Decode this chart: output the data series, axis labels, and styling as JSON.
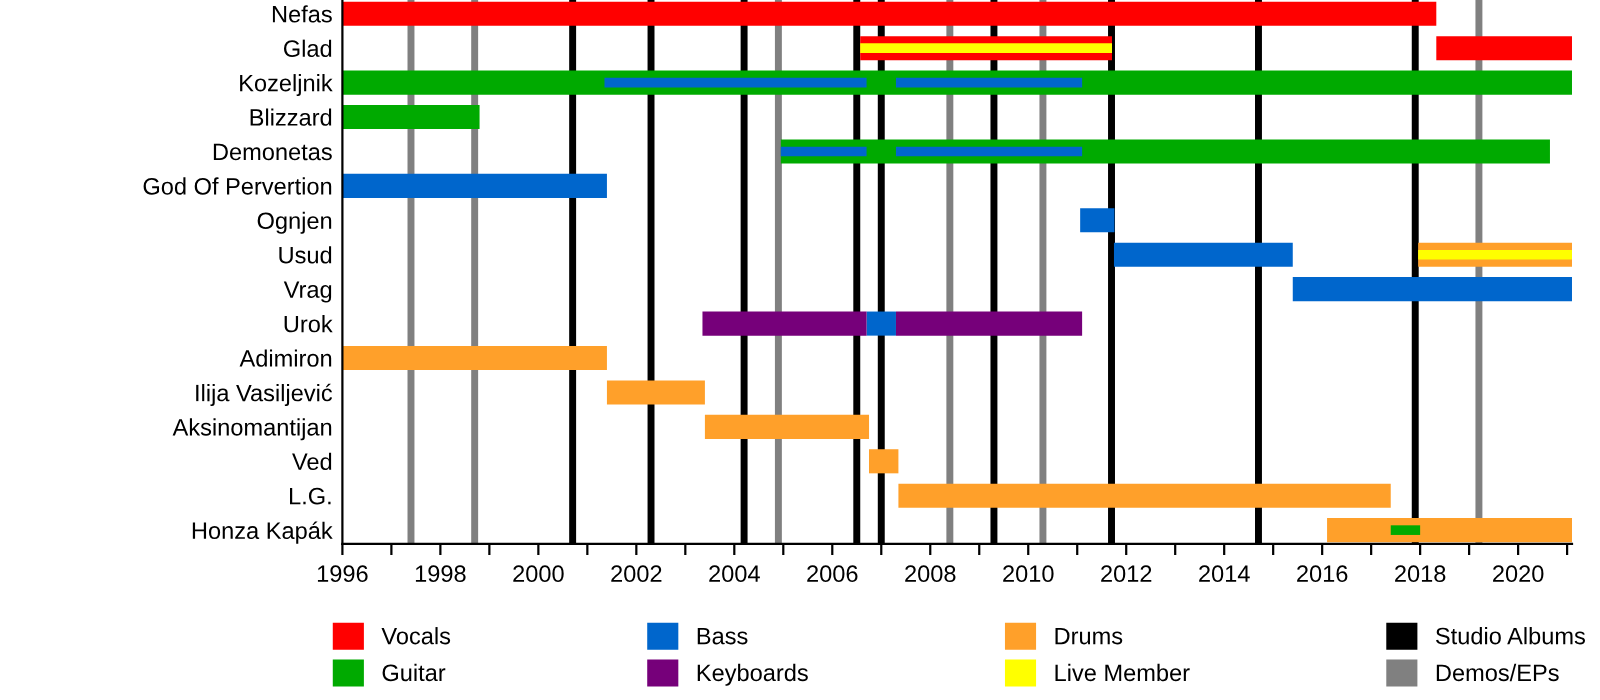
{
  "chart_data": {
    "type": "bar",
    "orientation": "horizontal",
    "categories": [
      "Nefas",
      "Glad",
      "Kozeljnik",
      "Blizzard",
      "Demonetas",
      "God Of Pervertion",
      "Ognjen",
      "Usud",
      "Vrag",
      "Urok",
      "Adimiron",
      "Ilija Vasiljević",
      "Aksinomantijan",
      "Ved",
      "L.G.",
      "Honza Kapák"
    ],
    "series": [
      {
        "name": "Vocals",
        "color": "#ff0000",
        "base": [
          1996,
          2006.57,
          null,
          null,
          null,
          null,
          null,
          null,
          null,
          null,
          null,
          null,
          null,
          null,
          null,
          null
        ],
        "values": [
          22.33,
          5.14,
          null,
          null,
          null,
          null,
          null,
          null,
          null,
          null,
          null,
          null,
          null,
          null,
          null,
          null
        ]
      },
      {
        "color": "#ff0000",
        "base": [
          null,
          2018.33,
          null,
          null,
          null,
          null,
          null,
          null,
          null,
          null,
          null,
          null,
          null,
          null,
          null,
          null
        ],
        "values": [
          null,
          2.77,
          null,
          null,
          null,
          null,
          null,
          null,
          null,
          null,
          null,
          null,
          null,
          null,
          null,
          null
        ]
      },
      {
        "name": "Guitar",
        "color": "#00aa00",
        "base": [
          null,
          null,
          1996,
          1996,
          2004.95,
          null,
          null,
          null,
          null,
          null,
          null,
          null,
          null,
          null,
          null,
          null
        ],
        "values": [
          null,
          null,
          25.1,
          2.8,
          15.7,
          null,
          null,
          null,
          null,
          null,
          null,
          null,
          null,
          null,
          null,
          null
        ]
      },
      {
        "name": "Bass",
        "color": "#0066cc",
        "base": [
          null,
          null,
          null,
          null,
          null,
          1996,
          2011.06,
          2011.75,
          2015.4,
          2006.7,
          null,
          null,
          null,
          null,
          null,
          null
        ],
        "values": [
          null,
          null,
          null,
          null,
          null,
          5.4,
          0.7,
          3.65,
          5.7,
          0.6,
          null,
          null,
          null,
          null,
          null,
          null
        ]
      },
      {
        "name": "Keyboards",
        "color": "#76007a",
        "base": [
          null,
          null,
          null,
          null,
          null,
          null,
          null,
          null,
          null,
          2003.35,
          null,
          null,
          null,
          null,
          null,
          null
        ],
        "values": [
          null,
          null,
          null,
          null,
          null,
          null,
          null,
          null,
          null,
          3.35,
          null,
          null,
          null,
          null,
          null,
          null
        ]
      },
      {
        "color": "#76007a",
        "base": [
          null,
          null,
          null,
          null,
          null,
          null,
          null,
          null,
          null,
          2007.3,
          null,
          null,
          null,
          null,
          null,
          null
        ],
        "values": [
          null,
          null,
          null,
          null,
          null,
          null,
          null,
          null,
          null,
          3.8,
          null,
          null,
          null,
          null,
          null,
          null
        ]
      },
      {
        "name": "Drums",
        "color": "#ffa02a",
        "base": [
          null,
          null,
          null,
          null,
          null,
          null,
          null,
          2017.96,
          null,
          null,
          1996,
          2001.4,
          2003.4,
          2006.75,
          2007.35,
          2016.1
        ],
        "values": [
          null,
          null,
          null,
          null,
          null,
          null,
          null,
          3.14,
          null,
          null,
          5.4,
          2.0,
          3.35,
          0.6,
          10.05,
          5.0
        ]
      },
      {
        "name": "Live Member",
        "color": "#ffff00",
        "base": [
          null,
          2006.57,
          null,
          null,
          null,
          null,
          null,
          2017.96,
          null,
          null,
          null,
          null,
          null,
          null,
          null,
          null
        ],
        "values": [
          null,
          5.14,
          null,
          null,
          null,
          null,
          null,
          3.14,
          null,
          null,
          null,
          null,
          null,
          null,
          null,
          null
        ]
      },
      {
        "color": "#0066cc",
        "base": [
          null,
          null,
          2001.35,
          null,
          2004.95,
          null,
          null,
          null,
          null,
          null,
          null,
          null,
          null,
          null,
          null,
          null
        ],
        "values": [
          null,
          null,
          5.35,
          null,
          1.75,
          null,
          null,
          null,
          null,
          null,
          null,
          null,
          null,
          null,
          null,
          null
        ]
      },
      {
        "color": "#0066cc",
        "base": [
          null,
          null,
          2007.3,
          null,
          2007.3,
          null,
          null,
          null,
          null,
          null,
          null,
          null,
          null,
          null,
          null,
          null
        ],
        "values": [
          null,
          null,
          3.8,
          null,
          3.8,
          null,
          null,
          null,
          null,
          null,
          null,
          null,
          null,
          null,
          null,
          null
        ]
      },
      {
        "color": "#00aa00",
        "base": [
          null,
          null,
          null,
          null,
          null,
          null,
          null,
          null,
          null,
          null,
          null,
          null,
          null,
          null,
          null,
          2017.4
        ],
        "values": [
          null,
          null,
          null,
          null,
          null,
          null,
          null,
          null,
          null,
          null,
          null,
          null,
          null,
          null,
          null,
          0.6
        ]
      }
    ],
    "xlim": [
      1996,
      2021.1
    ],
    "xticks": [
      1996,
      {
        "value": 1997,
        "label": null
      },
      1998,
      {
        "value": 1999,
        "label": null
      },
      2000,
      {
        "value": 2001,
        "label": null
      },
      2002,
      {
        "value": 2003,
        "label": null
      },
      2004,
      {
        "value": 2005,
        "label": null
      },
      2006,
      {
        "value": 2007,
        "label": null
      },
      2008,
      {
        "value": 2009,
        "label": null
      },
      2010,
      {
        "value": 2011,
        "label": null
      },
      2012,
      {
        "value": 2013,
        "label": null
      },
      2014,
      {
        "value": 2015,
        "label": null
      },
      2016,
      {
        "value": 2017,
        "label": null
      },
      2018,
      {
        "value": 2019,
        "label": null
      },
      2020,
      {
        "value": 2021,
        "label": null
      }
    ],
    "ref_lines": [
      {
        "axis": "x",
        "value": 2000.7,
        "label": "Studio Albums",
        "color": "#000000"
      },
      {
        "axis": "x",
        "value": 2002.3,
        "color": "#000000"
      },
      {
        "axis": "x",
        "value": 2004.2,
        "color": "#000000"
      },
      {
        "axis": "x",
        "value": 2006.5,
        "color": "#000000"
      },
      {
        "axis": "x",
        "value": 2007.0,
        "color": "#000000"
      },
      {
        "axis": "x",
        "value": 2009.3,
        "color": "#000000"
      },
      {
        "axis": "x",
        "value": 2011.7,
        "color": "#000000"
      },
      {
        "axis": "x",
        "value": 2014.7,
        "color": "#000000"
      },
      {
        "axis": "x",
        "value": 2017.9,
        "color": "#000000"
      },
      {
        "axis": "x",
        "value": 1997.4,
        "label": "Demos/EPs",
        "color": "#808080"
      },
      {
        "axis": "x",
        "value": 1998.7,
        "color": "#808080"
      },
      {
        "axis": "x",
        "value": 2004.9,
        "color": "#808080"
      },
      {
        "axis": "x",
        "value": 2008.4,
        "color": "#808080"
      },
      {
        "axis": "x",
        "value": 2010.3,
        "color": "#808080"
      },
      {
        "axis": "x",
        "value": 2019.2,
        "color": "#808080"
      }
    ],
    "legend": "bottom"
  }
}
